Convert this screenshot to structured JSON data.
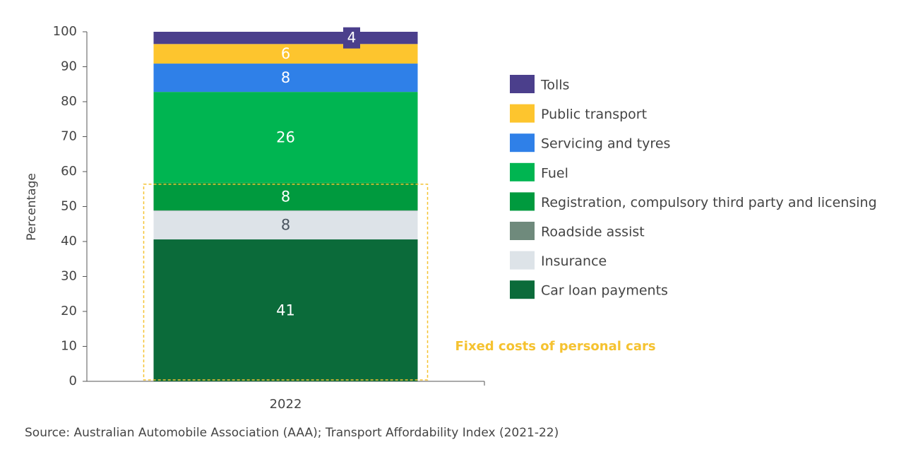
{
  "chart_data": {
    "type": "stacked_bar",
    "categories": [
      "2022"
    ],
    "y_label": "Percentage",
    "ylim": [
      0,
      100
    ],
    "yticks": [
      0,
      10,
      20,
      30,
      40,
      50,
      60,
      70,
      80,
      90,
      100
    ],
    "series": [
      {
        "name": "Car loan payments",
        "color": "#0b6b3a",
        "label_color": "#ffffff",
        "values": [
          40.6
        ],
        "value_labels": [
          "41"
        ]
      },
      {
        "name": "Insurance",
        "color": "#dde3e8",
        "label_color": "#4a5560",
        "values": [
          8.2
        ],
        "value_labels": [
          "8"
        ]
      },
      {
        "name": "Roadside assist",
        "color": "#6f8a7c",
        "values": [
          0.1
        ]
      },
      {
        "name": "Registration, compulsory third party and licensing",
        "color": "#009a3e",
        "label_color": "#ffffff",
        "values": [
          7.9
        ],
        "value_labels": [
          "8"
        ]
      },
      {
        "name": "Fuel",
        "color": "#00b551",
        "label_color": "#ffffff",
        "values": [
          26
        ],
        "value_labels": [
          "26"
        ]
      },
      {
        "name": "Servicing and tyres",
        "color": "#2f80e8",
        "label_color": "#ffffff",
        "values": [
          8.1
        ],
        "value_labels": [
          "8"
        ]
      },
      {
        "name": "Public transport",
        "color": "#fdc52e",
        "label_color": "#ffffff",
        "values": [
          5.6
        ],
        "value_labels": [
          "6"
        ]
      },
      {
        "name": "Tolls",
        "color": "#4b3f8c",
        "label_color": "#ffffff",
        "values": [
          3.5
        ],
        "value_labels": [
          "4"
        ]
      }
    ],
    "annotation": {
      "text": "Fixed costs of personal cars",
      "color": "#f5c230"
    },
    "source": "Source: Australian Automobile Association (AAA); Transport Affordability Index (2021-22)"
  }
}
